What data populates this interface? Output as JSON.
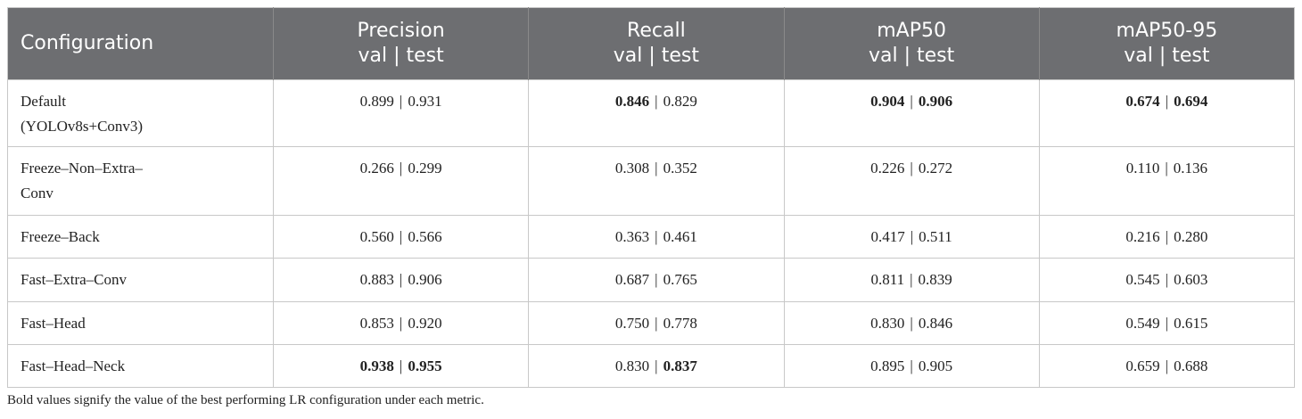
{
  "table": {
    "header": [
      {
        "title": "Configuration"
      },
      {
        "title": "Precision",
        "sub": "val | test"
      },
      {
        "title": "Recall",
        "sub": "val | test"
      },
      {
        "title": "mAP50",
        "sub": "val | test"
      },
      {
        "title": "mAP50-95",
        "sub": "val | test"
      }
    ],
    "separator": "|",
    "rows": [
      {
        "config": "Default (YOLOv8s+Conv3)",
        "cells": [
          {
            "val": "0.899",
            "test": "0.931",
            "bold": [
              false,
              false
            ]
          },
          {
            "val": "0.846",
            "test": "0.829",
            "bold": [
              true,
              false
            ]
          },
          {
            "val": "0.904",
            "test": "0.906",
            "bold": [
              true,
              true
            ]
          },
          {
            "val": "0.674",
            "test": "0.694",
            "bold": [
              true,
              true
            ]
          }
        ]
      },
      {
        "config": "Freeze–Non–Extra–Conv",
        "cells": [
          {
            "val": "0.266",
            "test": "0.299",
            "bold": [
              false,
              false
            ]
          },
          {
            "val": "0.308",
            "test": "0.352",
            "bold": [
              false,
              false
            ]
          },
          {
            "val": "0.226",
            "test": "0.272",
            "bold": [
              false,
              false
            ]
          },
          {
            "val": "0.110",
            "test": "0.136",
            "bold": [
              false,
              false
            ]
          }
        ]
      },
      {
        "config": "Freeze–Back",
        "cells": [
          {
            "val": "0.560",
            "test": "0.566",
            "bold": [
              false,
              false
            ]
          },
          {
            "val": "0.363",
            "test": "0.461",
            "bold": [
              false,
              false
            ]
          },
          {
            "val": "0.417",
            "test": "0.511",
            "bold": [
              false,
              false
            ]
          },
          {
            "val": "0.216",
            "test": "0.280",
            "bold": [
              false,
              false
            ]
          }
        ]
      },
      {
        "config": "Fast–Extra–Conv",
        "cells": [
          {
            "val": "0.883",
            "test": "0.906",
            "bold": [
              false,
              false
            ]
          },
          {
            "val": "0.687",
            "test": "0.765",
            "bold": [
              false,
              false
            ]
          },
          {
            "val": "0.811",
            "test": "0.839",
            "bold": [
              false,
              false
            ]
          },
          {
            "val": "0.545",
            "test": "0.603",
            "bold": [
              false,
              false
            ]
          }
        ]
      },
      {
        "config": "Fast–Head",
        "cells": [
          {
            "val": "0.853",
            "test": "0.920",
            "bold": [
              false,
              false
            ]
          },
          {
            "val": "0.750",
            "test": "0.778",
            "bold": [
              false,
              false
            ]
          },
          {
            "val": "0.830",
            "test": "0.846",
            "bold": [
              false,
              false
            ]
          },
          {
            "val": "0.549",
            "test": "0.615",
            "bold": [
              false,
              false
            ]
          }
        ]
      },
      {
        "config": "Fast–Head–Neck",
        "cells": [
          {
            "val": "0.938",
            "test": "0.955",
            "bold": [
              true,
              true
            ]
          },
          {
            "val": "0.830",
            "test": "0.837",
            "bold": [
              false,
              true
            ]
          },
          {
            "val": "0.895",
            "test": "0.905",
            "bold": [
              false,
              false
            ]
          },
          {
            "val": "0.659",
            "test": "0.688",
            "bold": [
              false,
              false
            ]
          }
        ]
      }
    ],
    "footnote": "Bold values signify the value of the best performing LR configuration under each metric."
  }
}
